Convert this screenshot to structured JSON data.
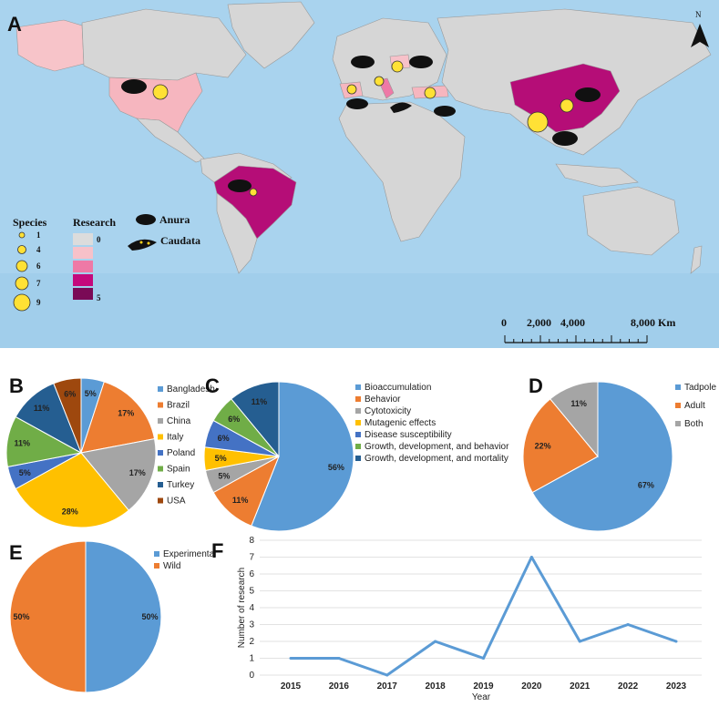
{
  "map": {
    "label": "A",
    "north_label": "N",
    "species_legend": {
      "title": "Species",
      "sizes": [
        1,
        4,
        6,
        7,
        9
      ]
    },
    "research_legend": {
      "title": "Research",
      "min_label": "0",
      "max_label": "5",
      "colors": [
        "#dcdcdc",
        "#f7c1c9",
        "#ee79a6",
        "#c4097c",
        "#7a0a56"
      ]
    },
    "taxa_legend": [
      "Anura",
      "Caudata"
    ],
    "scale_labels": [
      "0",
      "2,000",
      "4,000",
      "8,000 Km"
    ],
    "colors": {
      "ocean": "#a9d3ee",
      "land": "#d6d6d6",
      "usa": "#f6b6bf",
      "canada_alaska": "#f7c4c9",
      "brazil": "#b50d77",
      "china": "#b50d77",
      "point": "#ffe135"
    }
  },
  "chart_data": [
    {
      "panel": "B",
      "type": "pie",
      "categories": [
        "Bangladesh",
        "Brazil",
        "China",
        "Italy",
        "Poland",
        "Spain",
        "Turkey",
        "USA"
      ],
      "values": [
        5,
        17,
        17,
        28,
        5,
        11,
        11,
        6
      ],
      "labels": [
        "5%",
        "17%",
        "17%",
        "28%",
        "5%",
        "11%",
        "11%",
        "6%"
      ],
      "colors": [
        "#5b9bd5",
        "#ed7d31",
        "#a5a5a5",
        "#ffc000",
        "#4472c4",
        "#70ad47",
        "#255e91",
        "#9e480e"
      ]
    },
    {
      "panel": "C",
      "type": "pie",
      "categories": [
        "Bioaccumulation",
        "Behavior",
        "Cytotoxicity",
        "Mutagenic effects",
        "Disease susceptibility",
        "Growth, development, and behavior",
        "Growth, development, and mortality"
      ],
      "values": [
        56,
        11,
        5,
        5,
        6,
        6,
        11
      ],
      "labels": [
        "56%",
        "11%",
        "5%",
        "5%",
        "6%",
        "6%",
        "11%"
      ],
      "colors": [
        "#5b9bd5",
        "#ed7d31",
        "#a5a5a5",
        "#ffc000",
        "#4472c4",
        "#70ad47",
        "#255e91"
      ]
    },
    {
      "panel": "D",
      "type": "pie",
      "categories": [
        "Tadpole",
        "Adult",
        "Both"
      ],
      "values": [
        67,
        22,
        11
      ],
      "labels": [
        "67%",
        "22%",
        "11%"
      ],
      "colors": [
        "#5b9bd5",
        "#ed7d31",
        "#a5a5a5"
      ]
    },
    {
      "panel": "E",
      "type": "pie",
      "categories": [
        "Experimental",
        "Wild"
      ],
      "values": [
        50,
        50
      ],
      "labels": [
        "50%",
        "50%"
      ],
      "colors": [
        "#5b9bd5",
        "#ed7d31"
      ]
    },
    {
      "panel": "F",
      "type": "line",
      "x": [
        "2015",
        "2016",
        "2017",
        "2018",
        "2019",
        "2020",
        "2021",
        "2022",
        "2023"
      ],
      "series": [
        {
          "name": "Number of research",
          "values": [
            1,
            1,
            0,
            2,
            1,
            7,
            2,
            3,
            2
          ]
        }
      ],
      "xlabel": "Year",
      "ylabel": "Number of research",
      "ylim": [
        0,
        8
      ],
      "yticks": [
        "0",
        "1",
        "2",
        "3",
        "4",
        "5",
        "6",
        "7",
        "8"
      ],
      "color": "#5b9bd5",
      "grid": true
    }
  ]
}
